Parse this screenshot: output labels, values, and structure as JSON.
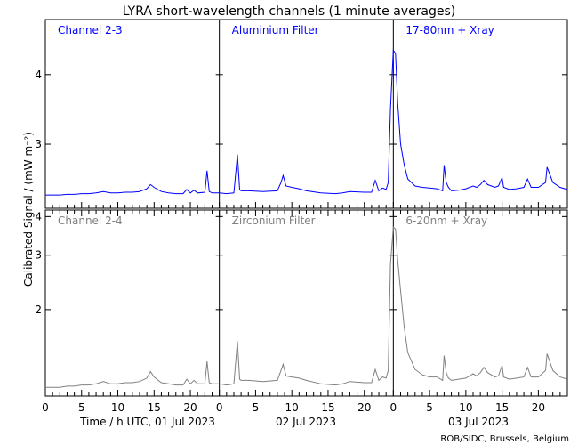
{
  "chart_data": {
    "type": "line",
    "title": "LYRA short-wavelength channels (1 minute averages)",
    "ylabel": "Calibrated Signal / (mW m⁻²)",
    "xlabel": "Time / h UTC, 01 Jul 2023",
    "day_labels": [
      "Time / h UTC, 01 Jul 2023",
      "02 Jul 2023",
      "03 Jul 2023"
    ],
    "x_tick_labels": [
      "0",
      "5",
      "10",
      "15",
      "20"
    ],
    "xlim": [
      0,
      72
    ],
    "footer": "ROB/SIDC, Brussels, Belgium",
    "panels": [
      {
        "name": "Aluminium channel",
        "labels": [
          "Channel 2-3",
          "Aluminium Filter",
          "17-80nm + Xray"
        ],
        "color": "#0000ff",
        "yscale": "linear",
        "ylim": [
          2.08,
          4.79
        ],
        "yticks": [
          3,
          4
        ],
        "ytick_labels": [
          "3",
          "4"
        ],
        "x": [
          0,
          1,
          2,
          3,
          4,
          5,
          6,
          7,
          8,
          9,
          10,
          11,
          12,
          13,
          14,
          14.5,
          15,
          16,
          17,
          18,
          19,
          19.5,
          20,
          20.5,
          21,
          22,
          22.3,
          22.6,
          23,
          24,
          25,
          26,
          26.5,
          26.8,
          27,
          28,
          30,
          32,
          32.5,
          32.8,
          33.2,
          34,
          35,
          36,
          38,
          40,
          41,
          42,
          44,
          45,
          45.5,
          46,
          46.5,
          47,
          47.3,
          47.6,
          48,
          48.3,
          48.6,
          49,
          49.5,
          50,
          51,
          52,
          53,
          54,
          54.8,
          55,
          55.3,
          55.6,
          56,
          57,
          58,
          59,
          59.5,
          60,
          60.5,
          61,
          62,
          62.5,
          63,
          63.2,
          64,
          65,
          66,
          66.5,
          67,
          68,
          69,
          69.2,
          70,
          71,
          72
        ],
        "values": [
          2.27,
          2.27,
          2.27,
          2.28,
          2.28,
          2.29,
          2.29,
          2.3,
          2.32,
          2.3,
          2.3,
          2.31,
          2.31,
          2.32,
          2.36,
          2.42,
          2.38,
          2.32,
          2.3,
          2.29,
          2.29,
          2.35,
          2.3,
          2.34,
          2.3,
          2.31,
          2.62,
          2.32,
          2.3,
          2.3,
          2.29,
          2.3,
          2.85,
          2.35,
          2.33,
          2.33,
          2.32,
          2.33,
          2.45,
          2.55,
          2.4,
          2.38,
          2.36,
          2.33,
          2.3,
          2.29,
          2.3,
          2.32,
          2.31,
          2.31,
          2.48,
          2.33,
          2.37,
          2.35,
          2.45,
          3.5,
          4.35,
          4.3,
          3.6,
          3.0,
          2.7,
          2.5,
          2.4,
          2.38,
          2.37,
          2.36,
          2.33,
          2.7,
          2.45,
          2.38,
          2.33,
          2.34,
          2.36,
          2.4,
          2.38,
          2.42,
          2.48,
          2.42,
          2.38,
          2.4,
          2.52,
          2.38,
          2.35,
          2.36,
          2.38,
          2.5,
          2.38,
          2.38,
          2.45,
          2.67,
          2.45,
          2.38,
          2.35
        ]
      },
      {
        "name": "Zirconium channel",
        "labels": [
          "Channel 2-4",
          "Zirconium Filter",
          "6-20nm + Xray"
        ],
        "color": "#808080",
        "yscale": "log",
        "ylim": [
          1.05,
          4.2
        ],
        "yticks": [
          2,
          3,
          4
        ],
        "ytick_labels": [
          "2",
          "3",
          "4"
        ],
        "x": [
          0,
          1,
          2,
          3,
          4,
          5,
          6,
          7,
          8,
          9,
          10,
          11,
          12,
          13,
          14,
          14.5,
          15,
          16,
          17,
          18,
          19,
          19.5,
          20,
          20.5,
          21,
          22,
          22.3,
          22.6,
          23,
          24,
          25,
          26,
          26.5,
          26.8,
          27,
          28,
          30,
          32,
          32.5,
          32.8,
          33.2,
          34,
          35,
          36,
          38,
          40,
          41,
          42,
          44,
          45,
          45.5,
          46,
          46.5,
          47,
          47.3,
          47.6,
          48,
          48.3,
          48.6,
          49,
          49.5,
          50,
          51,
          52,
          53,
          54,
          54.8,
          55,
          55.3,
          55.6,
          56,
          57,
          58,
          59,
          59.5,
          60,
          60.5,
          61,
          62,
          62.5,
          63,
          63.2,
          64,
          65,
          66,
          66.5,
          67,
          68,
          69,
          69.2,
          70,
          71,
          72
        ],
        "values": [
          1.12,
          1.12,
          1.12,
          1.13,
          1.13,
          1.14,
          1.14,
          1.15,
          1.17,
          1.15,
          1.15,
          1.16,
          1.16,
          1.17,
          1.2,
          1.26,
          1.21,
          1.16,
          1.15,
          1.14,
          1.14,
          1.19,
          1.15,
          1.18,
          1.15,
          1.15,
          1.36,
          1.16,
          1.15,
          1.15,
          1.14,
          1.15,
          1.58,
          1.19,
          1.18,
          1.18,
          1.17,
          1.18,
          1.27,
          1.33,
          1.22,
          1.21,
          1.2,
          1.18,
          1.15,
          1.14,
          1.15,
          1.17,
          1.16,
          1.16,
          1.28,
          1.18,
          1.21,
          1.2,
          1.27,
          2.8,
          3.7,
          3.65,
          2.9,
          2.3,
          1.75,
          1.45,
          1.28,
          1.23,
          1.21,
          1.21,
          1.18,
          1.42,
          1.25,
          1.2,
          1.18,
          1.19,
          1.2,
          1.24,
          1.22,
          1.25,
          1.3,
          1.25,
          1.21,
          1.22,
          1.32,
          1.21,
          1.19,
          1.2,
          1.21,
          1.3,
          1.21,
          1.21,
          1.27,
          1.44,
          1.27,
          1.21,
          1.19
        ]
      }
    ]
  }
}
